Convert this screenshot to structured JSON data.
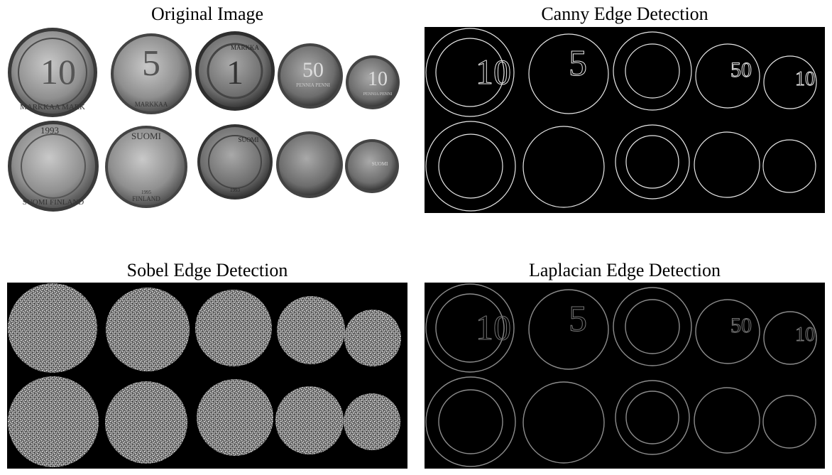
{
  "panels": {
    "original": {
      "title": "Original Image"
    },
    "canny": {
      "title": "Canny Edge Detection"
    },
    "sobel": {
      "title": "Sobel Edge Detection"
    },
    "laplacian": {
      "title": "Laplacian Edge Detection"
    }
  },
  "coins": {
    "top": [
      "10",
      "5",
      "1",
      "50",
      "10"
    ],
    "bottom": [
      "1993",
      "SUOMI",
      "SUOMI",
      "",
      "SUOMI"
    ],
    "markings": [
      "MARKKAA MARK",
      "MARKKAA",
      "MARKKA",
      "PENNIA PENNI",
      "PENNIA PENNI",
      "SUOMI FINLAND",
      "FINLAND",
      "1995",
      "1993",
      "SUOMI FINLAND"
    ]
  },
  "colors": {
    "canny_edge": "#e8e8e8",
    "sobel_noise": "#bdbdbd",
    "laplacian_edge": "#8c8c8c"
  }
}
